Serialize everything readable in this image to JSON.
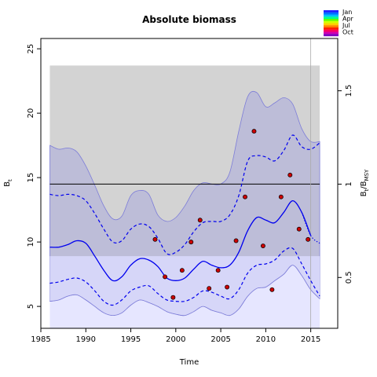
{
  "chart_data": {
    "type": "line",
    "title": "Absolute biomass",
    "xlabel": "Time",
    "ylabel": "B",
    "ylabel_sub": "t",
    "y2label_main": "B",
    "y2label_sub1": "t",
    "y2label_mid": "/B",
    "y2label_sub2": "MSY",
    "xlim": [
      1985,
      2018
    ],
    "ylim": [
      3.3,
      25.8
    ],
    "y2_per_unit": 0.069,
    "x_ticks": [
      1985,
      1990,
      1995,
      2000,
      2005,
      2010,
      2015
    ],
    "y_ticks": [
      5,
      10,
      15,
      20,
      25
    ],
    "y2_ticks": [
      "0.5",
      "1",
      "1.5"
    ],
    "y2_tick_values": [
      0.5,
      1,
      1.5
    ],
    "bmsy": 14.5,
    "bmsy_band": {
      "x0": 1986,
      "x1": 2016,
      "lower": 8.9,
      "upper": 23.7
    },
    "last_obs_year": 2015,
    "legend": {
      "placement": "top-right",
      "labels": [
        "Jan",
        "Apr",
        "Jul",
        "Oct"
      ]
    },
    "series": {
      "time": [
        1986,
        1987,
        1988,
        1989,
        1990,
        1991,
        1992,
        1993,
        1994,
        1995,
        1996,
        1997,
        1998,
        1999,
        2000,
        2001,
        2002,
        2003,
        2004,
        2005,
        2006,
        2007,
        2008,
        2009,
        2010,
        2011,
        2012,
        2013,
        2014,
        2015,
        2016
      ],
      "estimate": [
        9.6,
        9.6,
        9.8,
        10.1,
        9.9,
        8.9,
        7.8,
        7.0,
        7.3,
        8.2,
        8.7,
        8.6,
        8.1,
        7.2,
        7.0,
        7.2,
        7.9,
        8.5,
        8.2,
        8.0,
        8.2,
        9.2,
        10.9,
        11.9,
        11.7,
        11.5,
        12.3,
        13.2,
        12.3,
        10.5,
        null
      ],
      "estimate_dotted": {
        "time": [
          2014,
          2015,
          2016
        ],
        "values": [
          12.3,
          10.5,
          9.9
        ]
      },
      "ci_lower": [
        6.8,
        6.9,
        7.1,
        7.2,
        6.9,
        6.2,
        5.4,
        5.1,
        5.5,
        6.2,
        6.5,
        6.6,
        6.0,
        5.5,
        5.4,
        5.4,
        5.7,
        6.2,
        6.1,
        5.8,
        5.6,
        6.3,
        7.6,
        8.2,
        8.3,
        8.6,
        9.3,
        9.5,
        8.3,
        7.0,
        5.8
      ],
      "ci_upper": [
        13.7,
        13.6,
        13.7,
        13.6,
        13.2,
        12.2,
        11.0,
        10.0,
        10.1,
        11.0,
        11.4,
        11.2,
        10.3,
        9.1,
        9.2,
        9.8,
        10.8,
        11.5,
        11.6,
        11.6,
        12.1,
        13.6,
        16.3,
        16.7,
        16.6,
        16.3,
        17.1,
        18.3,
        17.4,
        17.2,
        17.7
      ],
      "ci95_lower": [
        5.4,
        5.5,
        5.8,
        5.9,
        5.5,
        5.0,
        4.5,
        4.3,
        4.5,
        5.1,
        5.5,
        5.3,
        5.0,
        4.6,
        4.4,
        4.3,
        4.6,
        5.0,
        4.7,
        4.5,
        4.3,
        4.8,
        5.8,
        6.4,
        6.5,
        7.0,
        7.5,
        8.2,
        7.4,
        6.3,
        5.6
      ],
      "ci95_upper": [
        17.5,
        17.2,
        17.3,
        17.0,
        15.9,
        14.4,
        12.8,
        11.8,
        12.0,
        13.6,
        14.0,
        13.7,
        12.1,
        11.6,
        11.9,
        12.8,
        14.0,
        14.6,
        14.5,
        14.5,
        15.4,
        18.6,
        21.3,
        21.6,
        20.5,
        20.8,
        21.2,
        20.7,
        18.8,
        17.8,
        17.8
      ]
    },
    "observations": {
      "x": [
        1997.7,
        1998.8,
        1999.7,
        2000.7,
        2001.7,
        2002.7,
        2003.7,
        2004.7,
        2005.7,
        2006.7,
        2007.7,
        2008.7,
        2009.7,
        2010.7,
        2011.7,
        2012.7,
        2013.7,
        2014.7
      ],
      "y": [
        10.2,
        7.3,
        5.7,
        7.8,
        10.0,
        11.7,
        6.4,
        7.8,
        6.5,
        10.1,
        13.5,
        18.6,
        9.7,
        6.3,
        13.5,
        15.2,
        11.0,
        10.2
      ]
    },
    "colors": {
      "band": "#d3d3d3",
      "ci95": "#b8b8d8",
      "ci95_outer": "#e6e6ff",
      "lines": "#0000ee",
      "points": "#cc0000"
    }
  }
}
